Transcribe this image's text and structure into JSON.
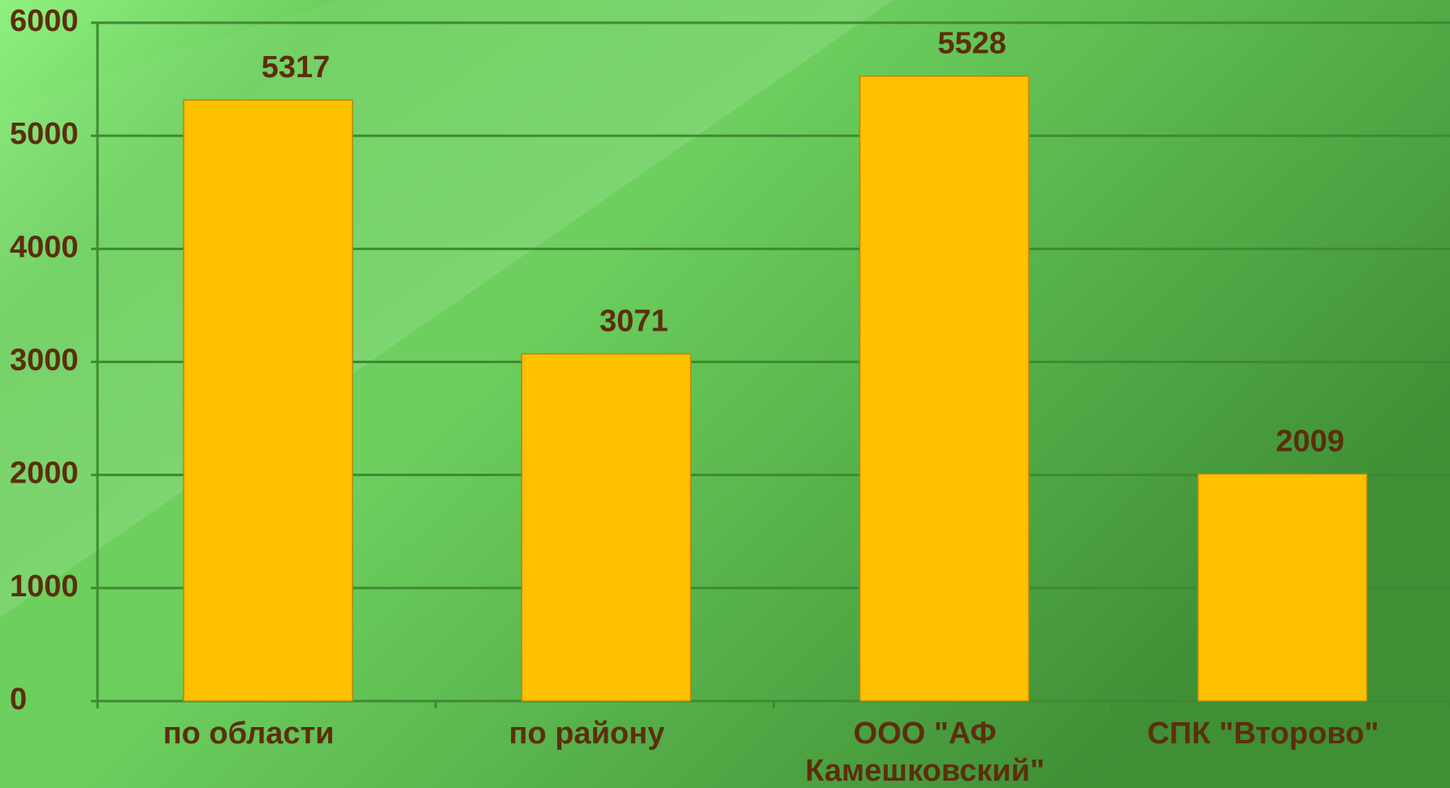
{
  "chart_data": {
    "type": "bar",
    "categories": [
      [
        "по области"
      ],
      [
        "по району"
      ],
      [
        "ООО \"АФ",
        "Камешковский\""
      ],
      [
        "СПК \"Второво\""
      ]
    ],
    "values": [
      5317,
      3071,
      5528,
      2009
    ],
    "value_labels": [
      "5317",
      "3071",
      "5528",
      "2009"
    ],
    "yticks": [
      "0",
      "1000",
      "2000",
      "3000",
      "4000",
      "5000",
      "6000"
    ],
    "ylim": [
      0,
      6000
    ],
    "grid": true,
    "legend": "none",
    "colors": {
      "bar": "#FFC000",
      "bar_edge": "#B8860B",
      "text": "#5C2E0E",
      "grid": "#3E8A32",
      "axis": "#3E8A32",
      "bg_light": "#8EF07E",
      "bg_mid": "#6CCF5E",
      "bg_dark": "#3F8F35"
    }
  }
}
